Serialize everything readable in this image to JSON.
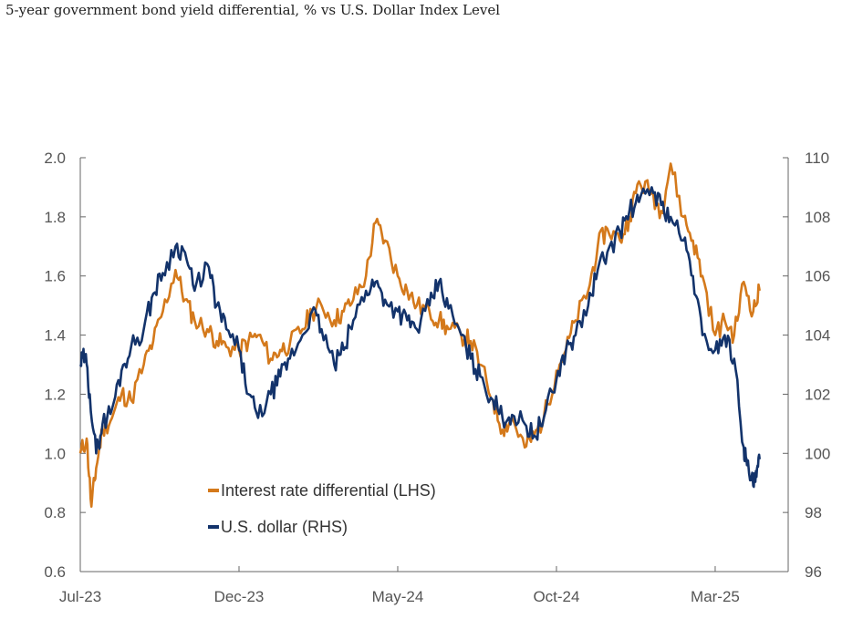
{
  "title": "5-year government bond yield differential, % vs U.S. Dollar Index Level",
  "chart_data": {
    "type": "line",
    "x_tick_labels": [
      "Jul-23",
      "Dec-23",
      "May-24",
      "Oct-24",
      "Mar-25"
    ],
    "x_tick_positions": [
      0,
      5,
      10,
      15,
      20
    ],
    "xlim": [
      0,
      22.3
    ],
    "left_axis": {
      "ticks": [
        "0.6",
        "0.8",
        "1.0",
        "1.2",
        "1.4",
        "1.6",
        "1.8",
        "2.0"
      ],
      "ylim": [
        0.6,
        2.0
      ]
    },
    "right_axis": {
      "ticks": [
        "96",
        "98",
        "100",
        "102",
        "104",
        "106",
        "108",
        "110"
      ],
      "ylim": [
        96,
        110
      ]
    },
    "legend_placement": "lower-left inside",
    "series": [
      {
        "name": "Interest rate differential (LHS)",
        "axis": "left",
        "color": "#D4791B",
        "x": [
          0,
          0.2,
          0.35,
          0.5,
          0.7,
          1.0,
          1.3,
          1.6,
          2.0,
          2.3,
          2.6,
          3.0,
          3.3,
          3.6,
          4.0,
          4.3,
          4.6,
          5.0,
          5.3,
          5.6,
          6.0,
          6.3,
          6.6,
          7.0,
          7.3,
          7.6,
          8.0,
          8.3,
          8.6,
          9.0,
          9.3,
          9.6,
          10.0,
          10.3,
          10.6,
          11.0,
          11.3,
          11.6,
          12.0,
          12.3,
          12.6,
          13.0,
          13.3,
          13.6,
          14.0,
          14.3,
          14.6,
          15.0,
          15.3,
          15.6,
          16.0,
          16.3,
          16.6,
          17.0,
          17.3,
          17.6,
          18.0,
          18.3,
          18.6,
          19.0,
          19.3,
          19.6,
          20.0,
          20.3,
          20.6,
          20.9,
          21.2,
          21.4
        ],
        "values": [
          1.0,
          1.05,
          0.82,
          0.95,
          1.08,
          1.12,
          1.2,
          1.18,
          1.3,
          1.38,
          1.48,
          1.62,
          1.52,
          1.45,
          1.42,
          1.38,
          1.36,
          1.35,
          1.38,
          1.4,
          1.32,
          1.35,
          1.37,
          1.42,
          1.48,
          1.5,
          1.45,
          1.48,
          1.52,
          1.6,
          1.78,
          1.72,
          1.6,
          1.55,
          1.5,
          1.48,
          1.45,
          1.42,
          1.4,
          1.38,
          1.3,
          1.18,
          1.08,
          1.12,
          1.02,
          1.06,
          1.12,
          1.28,
          1.35,
          1.45,
          1.55,
          1.7,
          1.76,
          1.72,
          1.8,
          1.92,
          1.88,
          1.82,
          1.98,
          1.8,
          1.72,
          1.6,
          1.4,
          1.45,
          1.4,
          1.58,
          1.48,
          1.55
        ]
      },
      {
        "name": "U.S. dollar (RHS)",
        "axis": "right",
        "color": "#13336B",
        "x": [
          0,
          0.15,
          0.3,
          0.5,
          0.7,
          1.0,
          1.3,
          1.6,
          2.0,
          2.3,
          2.6,
          3.0,
          3.3,
          3.6,
          4.0,
          4.3,
          4.6,
          5.0,
          5.3,
          5.6,
          6.0,
          6.3,
          6.6,
          7.0,
          7.3,
          7.6,
          8.0,
          8.3,
          8.6,
          9.0,
          9.3,
          9.6,
          10.0,
          10.3,
          10.6,
          11.0,
          11.3,
          11.6,
          12.0,
          12.3,
          12.6,
          13.0,
          13.3,
          13.6,
          14.0,
          14.3,
          14.6,
          15.0,
          15.3,
          15.6,
          16.0,
          16.3,
          16.6,
          17.0,
          17.3,
          17.6,
          18.0,
          18.3,
          18.6,
          19.0,
          19.3,
          19.6,
          20.0,
          20.3,
          20.6,
          20.9,
          21.0,
          21.2,
          21.3,
          21.4
        ],
        "values": [
          103.0,
          103.3,
          102.0,
          100.0,
          101.0,
          101.5,
          102.8,
          103.6,
          104.2,
          105.4,
          106.1,
          107.0,
          106.8,
          105.5,
          106.4,
          105.0,
          104.2,
          103.5,
          102.0,
          101.2,
          102.0,
          102.6,
          103.2,
          104.0,
          104.8,
          104.2,
          103.0,
          103.5,
          104.5,
          105.5,
          105.8,
          105.2,
          104.8,
          104.5,
          104.2,
          105.0,
          105.8,
          104.9,
          104.0,
          103.2,
          102.6,
          101.8,
          101.2,
          101.3,
          101.0,
          100.6,
          101.2,
          102.5,
          103.5,
          104.0,
          105.0,
          106.2,
          106.8,
          107.5,
          108.2,
          108.5,
          109.0,
          108.4,
          108.0,
          107.2,
          106.0,
          104.0,
          103.5,
          104.0,
          103.2,
          100.2,
          99.6,
          98.9,
          99.2,
          99.8
        ]
      }
    ]
  }
}
